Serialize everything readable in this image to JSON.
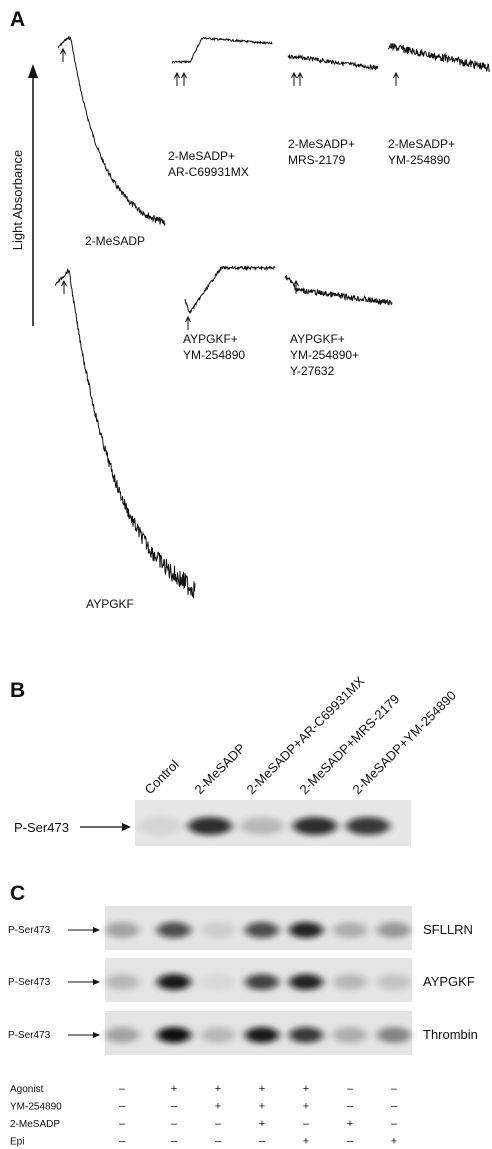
{
  "panel_a": {
    "label": "A",
    "y_axis_label": "Light Absorbance",
    "traces": [
      {
        "label": [
          "2-MeSADP"
        ]
      },
      {
        "label": [
          "2-MeSADP+",
          "AR-C69931MX"
        ]
      },
      {
        "label": [
          "2-MeSADP+",
          "MRS-2179"
        ]
      },
      {
        "label": [
          "2-MeSADP+",
          "YM-254890"
        ]
      },
      {
        "label": [
          "AYPGKF"
        ]
      },
      {
        "label": [
          "AYPGKF+",
          "YM-254890"
        ]
      },
      {
        "label": [
          "AYPGKF+",
          "YM-254890+",
          "Y-27632"
        ]
      }
    ]
  },
  "panel_b": {
    "label": "B",
    "lanes": [
      "Control",
      "2-MeSADP",
      "2-MeSADP+AR-C69931MX",
      "2-MeSADP+MRS-2179",
      "2-MeSADP+YM-254890"
    ],
    "row_label": "P-Ser473"
  },
  "panel_c": {
    "label": "C",
    "blots": [
      {
        "row_label": "P-Ser473",
        "agonist": "SFLLRN"
      },
      {
        "row_label": "P-Ser473",
        "agonist": "AYPGKF"
      },
      {
        "row_label": "P-Ser473",
        "agonist": "Thrombin"
      }
    ],
    "treatments": [
      {
        "name": "Agonist",
        "signs": [
          "–",
          "+",
          "+",
          "+",
          "+",
          "–",
          "–"
        ]
      },
      {
        "name": "YM-254890",
        "signs": [
          "–",
          "–",
          "+",
          "+",
          "+",
          "–",
          "–"
        ]
      },
      {
        "name": "2-MeSADP",
        "signs": [
          "–",
          "–",
          "–",
          "+",
          "–",
          "+",
          "–"
        ]
      },
      {
        "name": "Epi",
        "signs": [
          "–",
          "–",
          "–",
          "–",
          "+",
          "–",
          "+"
        ]
      }
    ]
  }
}
